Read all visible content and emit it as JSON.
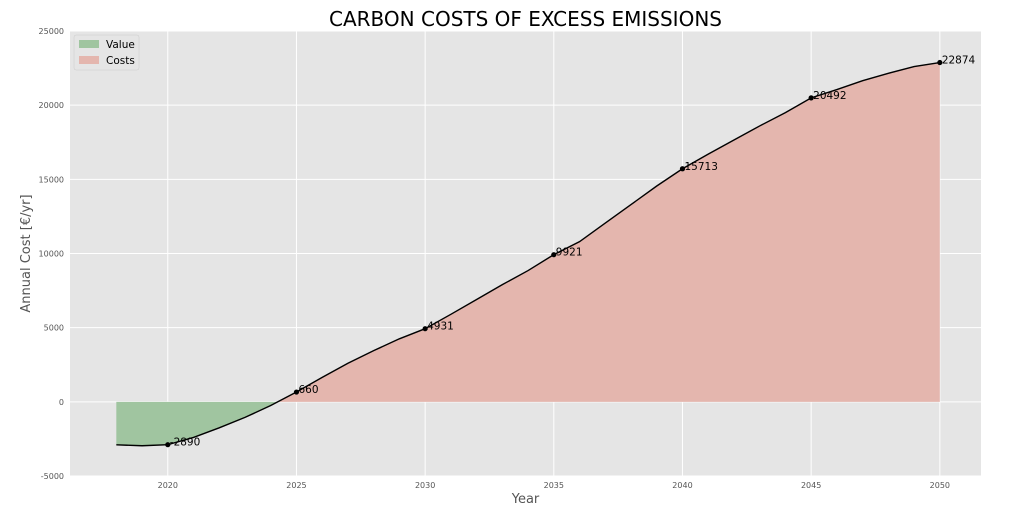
{
  "chart_data": {
    "type": "area",
    "title": "CARBON COSTS OF EXCESS EMISSIONS",
    "xlabel": "Year",
    "ylabel": "Annual Cost [€/yr]",
    "xlim": [
      2016.2,
      2051.6
    ],
    "ylim": [
      -5000,
      25000
    ],
    "xticks": [
      2020,
      2025,
      2030,
      2035,
      2040,
      2045,
      2050
    ],
    "yticks": [
      -5000,
      0,
      5000,
      10000,
      15000,
      20000,
      25000
    ],
    "grid": true,
    "legend_position": "upper-left",
    "legend": [
      {
        "label": "Value",
        "color": "#a0c5a0"
      },
      {
        "label": "Costs",
        "color": "#e4b6ae"
      }
    ],
    "line_color": "#000000",
    "background_color": "#e5e5e5",
    "series": [
      {
        "x": [
          2018,
          2019,
          2020,
          2021,
          2022,
          2023,
          2024,
          2025,
          2026,
          2027,
          2028,
          2029,
          2030,
          2031,
          2032,
          2033,
          2034,
          2035,
          2036,
          2037,
          2038,
          2039,
          2040,
          2041,
          2042,
          2043,
          2044,
          2045,
          2046,
          2047,
          2048,
          2049,
          2050
        ],
        "values": [
          -2900,
          -2960,
          -2890,
          -2400,
          -1750,
          -1050,
          -250,
          660,
          1650,
          2600,
          3450,
          4250,
          4931,
          5900,
          6900,
          7900,
          8850,
          9921,
          10800,
          12050,
          13300,
          14550,
          15713,
          16700,
          17650,
          18600,
          19500,
          20492,
          21050,
          21650,
          22150,
          22600,
          22874
        ]
      }
    ],
    "labeled_points": [
      {
        "x": 2020,
        "y": -2890,
        "label": "-2890"
      },
      {
        "x": 2025,
        "y": 660,
        "label": "660"
      },
      {
        "x": 2030,
        "y": 4931,
        "label": "4931"
      },
      {
        "x": 2035,
        "y": 9921,
        "label": "9921"
      },
      {
        "x": 2040,
        "y": 15713,
        "label": "15713"
      },
      {
        "x": 2045,
        "y": 20492,
        "label": "20492"
      },
      {
        "x": 2050,
        "y": 22874,
        "label": "22874"
      }
    ]
  }
}
